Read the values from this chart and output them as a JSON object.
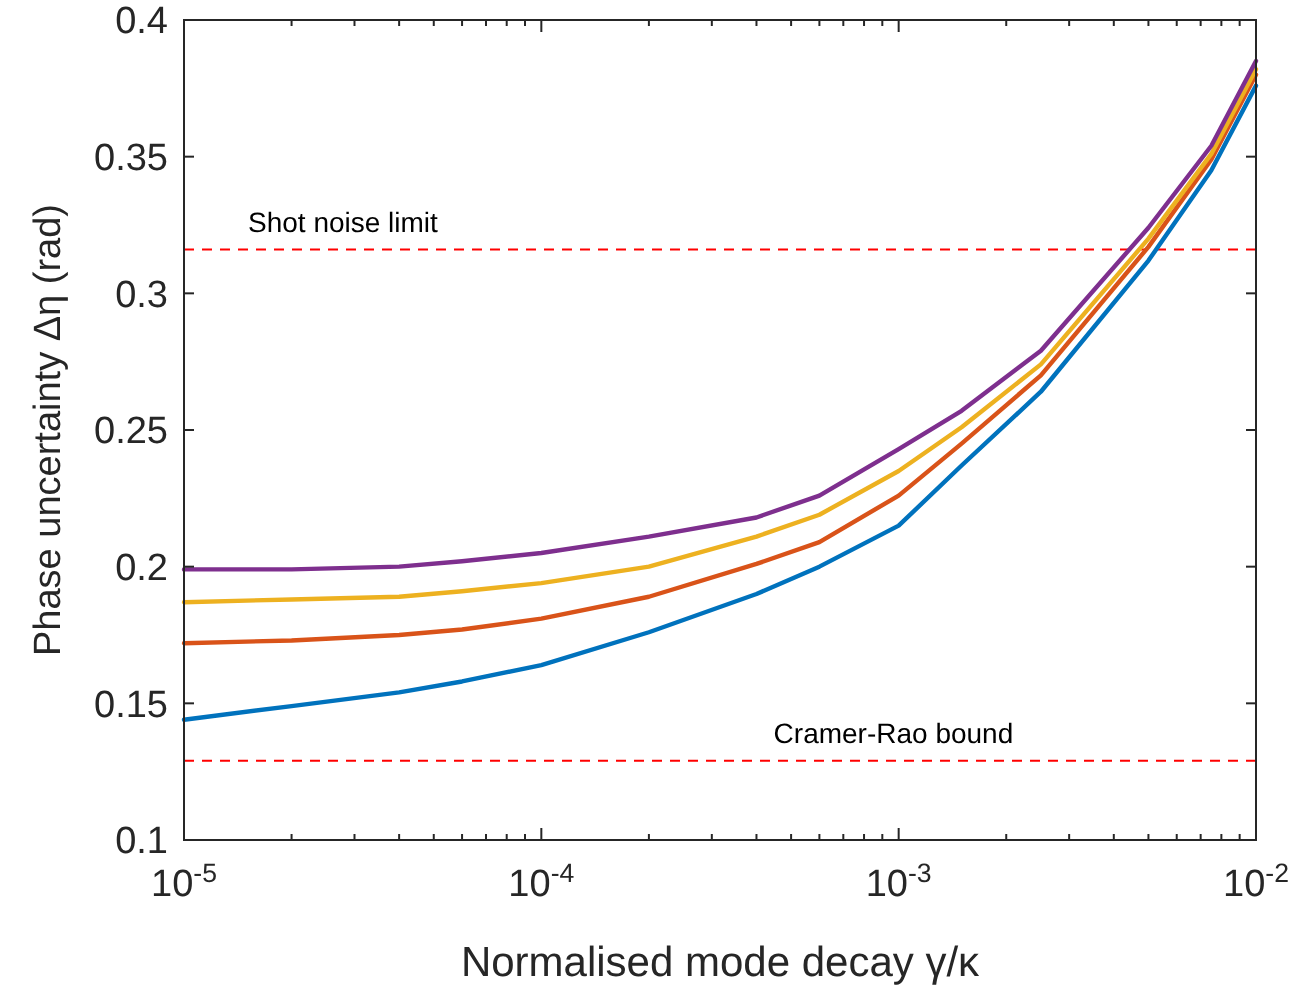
{
  "chart_data": {
    "type": "line",
    "xlabel": "Normalised mode decay  γ/κ",
    "ylabel": "Phase uncertainty   Δη (rad)",
    "x": [
      1e-05,
      2e-05,
      4e-05,
      6e-05,
      0.0001,
      0.0002,
      0.0004,
      0.0006,
      0.001,
      0.0015,
      0.0025,
      0.005,
      0.0075,
      0.01
    ],
    "series": [
      {
        "color": "#0072bd",
        "values": [
          0.144,
          0.149,
          0.154,
          0.158,
          0.164,
          0.176,
          0.19,
          0.2,
          0.215,
          0.237,
          0.264,
          0.312,
          0.345,
          0.376
        ]
      },
      {
        "color": "#d95319",
        "values": [
          0.172,
          0.173,
          0.175,
          0.177,
          0.181,
          0.189,
          0.201,
          0.209,
          0.226,
          0.245,
          0.27,
          0.317,
          0.349,
          0.38
        ]
      },
      {
        "color": "#edb120",
        "values": [
          0.187,
          0.188,
          0.189,
          0.191,
          0.194,
          0.2,
          0.211,
          0.219,
          0.235,
          0.251,
          0.274,
          0.32,
          0.351,
          0.382
        ]
      },
      {
        "color": "#7e2f8e",
        "values": [
          0.199,
          0.199,
          0.2,
          0.202,
          0.205,
          0.211,
          0.218,
          0.226,
          0.243,
          0.257,
          0.279,
          0.324,
          0.354,
          0.385
        ]
      }
    ],
    "log": "x",
    "xlim": [
      1e-05,
      0.01
    ],
    "xticks": [
      {
        "value": 1e-05,
        "label": "10$^{-5}$"
      },
      {
        "value": 0.0001,
        "label": "10$^{-4}$"
      },
      {
        "value": 0.001,
        "label": "10$^{-3}$"
      },
      {
        "value": 0.01,
        "label": "10$^{-2}$"
      }
    ],
    "ylim": [
      0.1,
      0.4
    ],
    "yticks": [
      0.1,
      0.15,
      0.2,
      0.25,
      0.3,
      0.35,
      0.4
    ],
    "ref_lines": [
      {
        "axis": "y",
        "value": 0.316,
        "label": "Shot noise limit",
        "color": "#ff0000",
        "line_style": "dashed"
      },
      {
        "axis": "y",
        "value": 0.129,
        "label": "Cramer-Rao bound",
        "color": "#ff0000",
        "line_style": "dashed"
      }
    ],
    "grid": false,
    "marker": "none",
    "line_style": "solid"
  }
}
